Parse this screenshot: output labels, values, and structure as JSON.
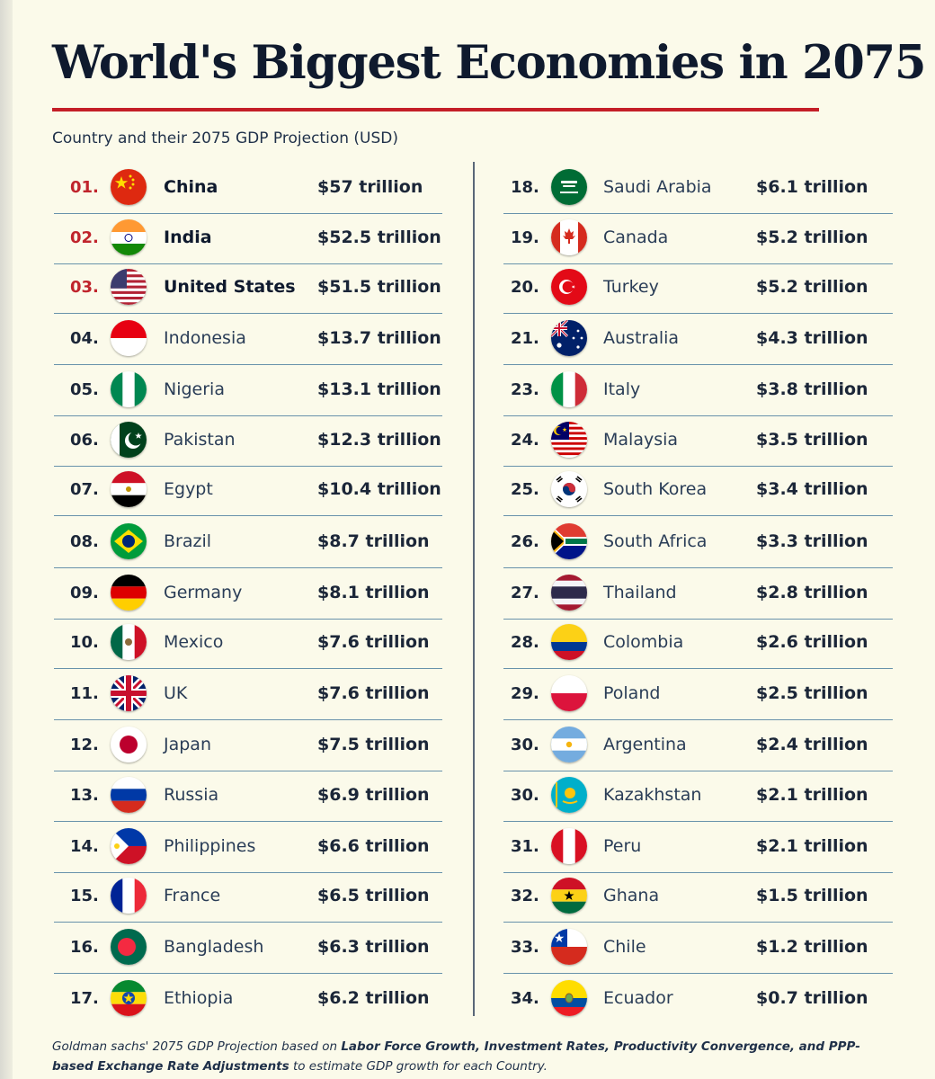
{
  "title": "World's Biggest Economies in 2075",
  "subtitle": "Country and their 2075 GDP Projection (USD)",
  "colors": {
    "accent_red": "#c41e27",
    "row_rule": "#4e7fa0",
    "background": "#fbfaea"
  },
  "left_column": [
    {
      "rank": "01.",
      "country": "China",
      "gdp": "$57 trillion",
      "flag": "china-flag-icon",
      "top": true
    },
    {
      "rank": "02.",
      "country": "India",
      "gdp": "$52.5 trillion",
      "flag": "india-flag-icon",
      "top": true
    },
    {
      "rank": "03.",
      "country": "United States",
      "gdp": "$51.5 trillion",
      "flag": "usa-flag-icon",
      "top": true
    },
    {
      "rank": "04.",
      "country": "Indonesia",
      "gdp": "$13.7 trillion",
      "flag": "indonesia-flag-icon"
    },
    {
      "rank": "05.",
      "country": "Nigeria",
      "gdp": "$13.1 trillion",
      "flag": "nigeria-flag-icon"
    },
    {
      "rank": "06.",
      "country": "Pakistan",
      "gdp": "$12.3 trillion",
      "flag": "pakistan-flag-icon"
    },
    {
      "rank": "07.",
      "country": "Egypt",
      "gdp": "$10.4 trillion",
      "flag": "egypt-flag-icon"
    },
    {
      "rank": "08.",
      "country": "Brazil",
      "gdp": "$8.7 trillion",
      "flag": "brazil-flag-icon"
    },
    {
      "rank": "09.",
      "country": "Germany",
      "gdp": "$8.1 trillion",
      "flag": "germany-flag-icon"
    },
    {
      "rank": "10.",
      "country": "Mexico",
      "gdp": "$7.6 trillion",
      "flag": "mexico-flag-icon"
    },
    {
      "rank": "11.",
      "country": "UK",
      "gdp": "$7.6 trillion",
      "flag": "uk-flag-icon"
    },
    {
      "rank": "12.",
      "country": "Japan",
      "gdp": "$7.5 trillion",
      "flag": "japan-flag-icon"
    },
    {
      "rank": "13.",
      "country": "Russia",
      "gdp": "$6.9 trillion",
      "flag": "russia-flag-icon"
    },
    {
      "rank": "14.",
      "country": "Philippines",
      "gdp": "$6.6 trillion",
      "flag": "philippines-flag-icon"
    },
    {
      "rank": "15.",
      "country": "France",
      "gdp": "$6.5 trillion",
      "flag": "france-flag-icon"
    },
    {
      "rank": "16.",
      "country": "Bangladesh",
      "gdp": "$6.3 trillion",
      "flag": "bangladesh-flag-icon"
    },
    {
      "rank": "17.",
      "country": "Ethiopia",
      "gdp": "$6.2 trillion",
      "flag": "ethiopia-flag-icon"
    }
  ],
  "right_column": [
    {
      "rank": "18.",
      "country": "Saudi Arabia",
      "gdp": "$6.1 trillion",
      "flag": "saudi-arabia-flag-icon"
    },
    {
      "rank": "19.",
      "country": "Canada",
      "gdp": "$5.2 trillion",
      "flag": "canada-flag-icon"
    },
    {
      "rank": "20.",
      "country": "Turkey",
      "gdp": "$5.2 trillion",
      "flag": "turkey-flag-icon"
    },
    {
      "rank": "21.",
      "country": "Australia",
      "gdp": "$4.3 trillion",
      "flag": "australia-flag-icon"
    },
    {
      "rank": "23.",
      "country": "Italy",
      "gdp": "$3.8 trillion",
      "flag": "italy-flag-icon"
    },
    {
      "rank": "24.",
      "country": "Malaysia",
      "gdp": "$3.5 trillion",
      "flag": "malaysia-flag-icon"
    },
    {
      "rank": "25.",
      "country": "South Korea",
      "gdp": "$3.4 trillion",
      "flag": "south-korea-flag-icon"
    },
    {
      "rank": "26.",
      "country": "South Africa",
      "gdp": "$3.3 trillion",
      "flag": "south-africa-flag-icon"
    },
    {
      "rank": "27.",
      "country": "Thailand",
      "gdp": "$2.8 trillion",
      "flag": "thailand-flag-icon"
    },
    {
      "rank": "28.",
      "country": "Colombia",
      "gdp": "$2.6 trillion",
      "flag": "colombia-flag-icon"
    },
    {
      "rank": "29.",
      "country": "Poland",
      "gdp": "$2.5 trillion",
      "flag": "poland-flag-icon"
    },
    {
      "rank": "30.",
      "country": "Argentina",
      "gdp": "$2.4 trillion",
      "flag": "argentina-flag-icon"
    },
    {
      "rank": "30.",
      "country": "Kazakhstan",
      "gdp": "$2.1 trillion",
      "flag": "kazakhstan-flag-icon"
    },
    {
      "rank": "31.",
      "country": "Peru",
      "gdp": "$2.1 trillion",
      "flag": "peru-flag-icon"
    },
    {
      "rank": "32.",
      "country": "Ghana",
      "gdp": "$1.5 trillion",
      "flag": "ghana-flag-icon"
    },
    {
      "rank": "33.",
      "country": "Chile",
      "gdp": "$1.2 trillion",
      "flag": "chile-flag-icon"
    },
    {
      "rank": "34.",
      "country": "Ecuador",
      "gdp": "$0.7 trillion",
      "flag": "ecuador-flag-icon"
    }
  ],
  "footnote": {
    "part1": "Goldman sachs' 2075 GDP Projection based on ",
    "bold1": "Labor Force Growth, Investment Rates, Productivity Convergence, and PPP-based Exchange Rate Adjustments",
    "part2": " to estimate GDP growth for each Country."
  }
}
